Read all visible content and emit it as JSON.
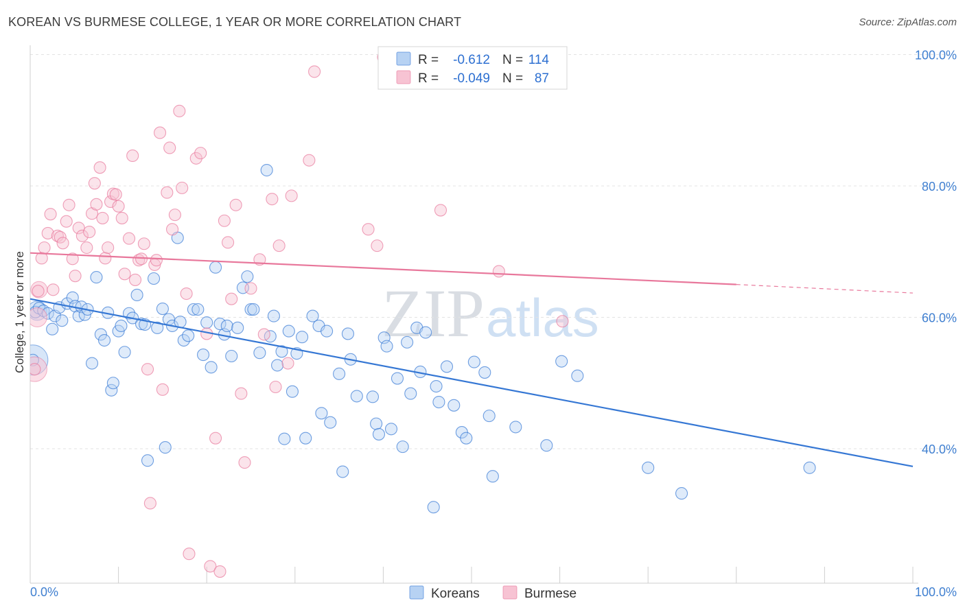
{
  "title": "KOREAN VS BURMESE COLLEGE, 1 YEAR OR MORE CORRELATION CHART",
  "source": "Source: ZipAtlas.com",
  "watermark": {
    "part1": "ZIP",
    "part2": "atlas"
  },
  "legend_top": {
    "rows": [
      {
        "r_label": "R =",
        "r_value": "-0.612",
        "n_label": "N =",
        "n_value": "114",
        "color": "#7aaee8"
      },
      {
        "r_label": "R =",
        "r_value": "-0.049",
        "n_label": "N =",
        "n_value": "87",
        "color": "#f0a0b8"
      }
    ]
  },
  "legend_bottom": [
    {
      "label": "Koreans",
      "color": "#7aaee8"
    },
    {
      "label": "Burmese",
      "color": "#f0a0b8"
    }
  ],
  "chart_data": {
    "type": "scatter",
    "title": "KOREAN VS BURMESE COLLEGE, 1 YEAR OR MORE CORRELATION CHART",
    "xlabel": "",
    "ylabel": "College, 1 year or more",
    "xlim": [
      0,
      100
    ],
    "ylim": [
      20,
      102
    ],
    "x_tick_labels": [
      "0.0%",
      "100.0%"
    ],
    "y_ticks": [
      {
        "value": 100,
        "label": "100.0%"
      },
      {
        "value": 80,
        "label": "80.0%"
      },
      {
        "value": 60,
        "label": "60.0%"
      },
      {
        "value": 40,
        "label": "40.0%"
      }
    ],
    "grid": true,
    "series": [
      {
        "name": "Koreans",
        "color": "#3577d4",
        "fill": "#b7d2f3",
        "trend": {
          "x": [
            0,
            100
          ],
          "y": [
            62.8,
            37.3
          ],
          "dashed_from": null
        },
        "points": [
          [
            0.3,
            53.5
          ],
          [
            0.6,
            60.8
          ],
          [
            1.0,
            61.4
          ],
          [
            1.5,
            61.0
          ],
          [
            2.0,
            60.6
          ],
          [
            2.5,
            58.2
          ],
          [
            2.8,
            60.2
          ],
          [
            3.3,
            61.5
          ],
          [
            3.6,
            59.5
          ],
          [
            4.2,
            62.1
          ],
          [
            4.8,
            63.0
          ],
          [
            5.1,
            61.7
          ],
          [
            5.5,
            60.2
          ],
          [
            5.8,
            61.6
          ],
          [
            6.2,
            60.4
          ],
          [
            6.5,
            61.2
          ],
          [
            7.0,
            53.0
          ],
          [
            7.5,
            66.1
          ],
          [
            8.0,
            57.4
          ],
          [
            8.4,
            56.5
          ],
          [
            8.8,
            60.7
          ],
          [
            9.2,
            48.9
          ],
          [
            9.4,
            50.0
          ],
          [
            10.0,
            57.9
          ],
          [
            10.3,
            58.7
          ],
          [
            10.7,
            54.7
          ],
          [
            11.2,
            60.6
          ],
          [
            11.6,
            59.9
          ],
          [
            12.1,
            63.4
          ],
          [
            12.6,
            59.0
          ],
          [
            13.0,
            58.9
          ],
          [
            13.3,
            38.2
          ],
          [
            14.0,
            65.9
          ],
          [
            14.4,
            58.4
          ],
          [
            15.0,
            61.3
          ],
          [
            15.3,
            40.2
          ],
          [
            15.7,
            59.7
          ],
          [
            16.1,
            58.7
          ],
          [
            16.7,
            72.1
          ],
          [
            17.0,
            59.3
          ],
          [
            17.4,
            56.5
          ],
          [
            17.9,
            57.2
          ],
          [
            18.5,
            61.2
          ],
          [
            19.0,
            61.2
          ],
          [
            19.6,
            54.3
          ],
          [
            20.0,
            59.2
          ],
          [
            20.5,
            52.4
          ],
          [
            21.0,
            67.6
          ],
          [
            21.5,
            59.0
          ],
          [
            22.0,
            57.4
          ],
          [
            22.3,
            58.7
          ],
          [
            22.8,
            54.1
          ],
          [
            23.5,
            58.4
          ],
          [
            24.1,
            64.5
          ],
          [
            24.6,
            66.2
          ],
          [
            25.0,
            61.2
          ],
          [
            25.3,
            61.2
          ],
          [
            26.0,
            54.6
          ],
          [
            26.8,
            82.4
          ],
          [
            27.2,
            57.1
          ],
          [
            27.6,
            60.2
          ],
          [
            28.0,
            52.7
          ],
          [
            28.5,
            54.8
          ],
          [
            28.8,
            41.5
          ],
          [
            29.3,
            57.9
          ],
          [
            29.7,
            48.7
          ],
          [
            30.2,
            54.5
          ],
          [
            30.8,
            57.0
          ],
          [
            31.2,
            41.6
          ],
          [
            32.0,
            60.2
          ],
          [
            32.7,
            58.7
          ],
          [
            33.0,
            45.4
          ],
          [
            33.6,
            57.9
          ],
          [
            34.0,
            44.0
          ],
          [
            35.0,
            51.4
          ],
          [
            35.4,
            36.5
          ],
          [
            36.0,
            57.5
          ],
          [
            36.3,
            53.6
          ],
          [
            37.0,
            48.0
          ],
          [
            38.8,
            47.9
          ],
          [
            39.2,
            43.8
          ],
          [
            39.5,
            42.2
          ],
          [
            40.1,
            56.9
          ],
          [
            40.4,
            55.6
          ],
          [
            40.9,
            43.0
          ],
          [
            41.6,
            50.7
          ],
          [
            42.2,
            40.3
          ],
          [
            42.7,
            56.2
          ],
          [
            43.1,
            48.4
          ],
          [
            43.8,
            58.4
          ],
          [
            44.2,
            51.7
          ],
          [
            44.8,
            57.7
          ],
          [
            45.7,
            31.1
          ],
          [
            46.0,
            49.5
          ],
          [
            46.3,
            47.1
          ],
          [
            47.2,
            52.5
          ],
          [
            48.0,
            46.6
          ],
          [
            48.9,
            42.5
          ],
          [
            49.4,
            41.6
          ],
          [
            50.3,
            53.2
          ],
          [
            51.5,
            51.6
          ],
          [
            52.0,
            45.0
          ],
          [
            52.4,
            35.8
          ],
          [
            55.0,
            43.3
          ],
          [
            58.5,
            40.5
          ],
          [
            60.2,
            53.3
          ],
          [
            62.0,
            51.1
          ],
          [
            70.0,
            37.1
          ],
          [
            73.8,
            33.2
          ],
          [
            88.3,
            37.1
          ]
        ],
        "big_points": [
          [
            0.3,
            53.5,
            22
          ],
          [
            0.8,
            61.0,
            14
          ]
        ]
      },
      {
        "name": "Burmese",
        "color": "#e8779b",
        "fill": "#f7c3d3",
        "trend": {
          "x": [
            0,
            80,
            100
          ],
          "y": [
            69.8,
            65.0,
            63.7
          ],
          "dashed_from": 80
        },
        "points": [
          [
            0.5,
            52.1
          ],
          [
            0.9,
            64.0
          ],
          [
            1.3,
            69.0
          ],
          [
            1.6,
            70.6
          ],
          [
            2.0,
            72.8
          ],
          [
            2.3,
            75.7
          ],
          [
            2.6,
            64.2
          ],
          [
            3.1,
            72.4
          ],
          [
            3.4,
            72.2
          ],
          [
            3.7,
            71.3
          ],
          [
            4.1,
            74.6
          ],
          [
            4.4,
            77.1
          ],
          [
            4.8,
            68.9
          ],
          [
            5.1,
            66.3
          ],
          [
            5.5,
            73.6
          ],
          [
            5.9,
            72.4
          ],
          [
            6.4,
            70.6
          ],
          [
            6.7,
            73.0
          ],
          [
            7.0,
            75.8
          ],
          [
            7.3,
            80.4
          ],
          [
            7.5,
            77.2
          ],
          [
            7.9,
            82.8
          ],
          [
            8.2,
            75.1
          ],
          [
            8.5,
            69.0
          ],
          [
            8.8,
            70.6
          ],
          [
            9.1,
            77.6
          ],
          [
            9.4,
            78.8
          ],
          [
            9.7,
            78.7
          ],
          [
            10.0,
            76.9
          ],
          [
            10.4,
            75.1
          ],
          [
            10.7,
            66.6
          ],
          [
            11.2,
            72.0
          ],
          [
            11.6,
            84.6
          ],
          [
            11.9,
            65.7
          ],
          [
            12.3,
            68.7
          ],
          [
            12.6,
            68.9
          ],
          [
            12.9,
            71.2
          ],
          [
            13.3,
            52.1
          ],
          [
            13.6,
            31.7
          ],
          [
            14.1,
            68.0
          ],
          [
            14.3,
            68.7
          ],
          [
            14.7,
            88.1
          ],
          [
            15.0,
            49.0
          ],
          [
            15.5,
            79.0
          ],
          [
            15.8,
            85.8
          ],
          [
            16.1,
            73.4
          ],
          [
            16.4,
            75.6
          ],
          [
            16.9,
            91.4
          ],
          [
            17.2,
            79.7
          ],
          [
            17.7,
            63.6
          ],
          [
            18.0,
            24.0
          ],
          [
            18.8,
            84.2
          ],
          [
            19.3,
            85.0
          ],
          [
            20.0,
            57.5
          ],
          [
            20.4,
            22.1
          ],
          [
            21.0,
            41.6
          ],
          [
            21.5,
            21.3
          ],
          [
            22.0,
            74.7
          ],
          [
            22.4,
            71.4
          ],
          [
            22.8,
            62.8
          ],
          [
            23.3,
            77.1
          ],
          [
            23.9,
            48.4
          ],
          [
            24.3,
            37.9
          ],
          [
            25.0,
            64.4
          ],
          [
            26.0,
            68.8
          ],
          [
            26.5,
            57.4
          ],
          [
            27.4,
            78.0
          ],
          [
            27.8,
            49.4
          ],
          [
            28.2,
            70.9
          ],
          [
            29.2,
            53.0
          ],
          [
            29.6,
            78.5
          ],
          [
            31.6,
            83.9
          ],
          [
            32.2,
            97.4
          ],
          [
            38.3,
            73.4
          ],
          [
            39.3,
            70.9
          ],
          [
            40.0,
            99.6
          ],
          [
            46.5,
            76.3
          ],
          [
            53.1,
            67.0
          ],
          [
            60.3,
            59.4
          ]
        ],
        "big_points": [
          [
            0.5,
            52.1,
            18
          ],
          [
            0.8,
            60.0,
            14
          ],
          [
            1.0,
            64.2,
            12
          ]
        ]
      }
    ]
  }
}
